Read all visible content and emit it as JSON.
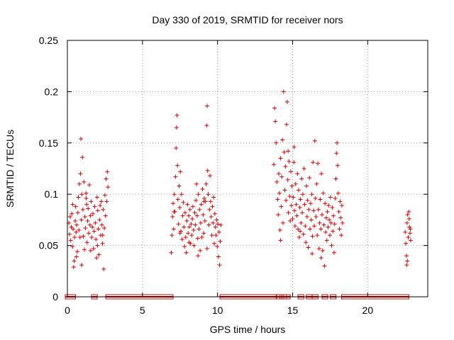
{
  "colors": {
    "series": "#dd0000",
    "grid": "#a0a0a0",
    "axis": "#000000"
  },
  "chart_data": {
    "type": "scatter",
    "title": "Day 330 of 2019, SRMTID for receiver nors",
    "xlabel": "GPS time / hours",
    "ylabel": "SRMTID / TECUs",
    "xlim": [
      0,
      24
    ],
    "ylim": [
      0,
      0.25
    ],
    "x_ticks": [
      0,
      5,
      10,
      15,
      20
    ],
    "x_tick_labels": [
      "0",
      "5",
      "10",
      "15",
      "20"
    ],
    "y_ticks": [
      0,
      0.05,
      0.1,
      0.15,
      0.2,
      0.25
    ],
    "y_tick_labels": [
      "0",
      "0.05",
      "0.1",
      "0.15",
      "0.2",
      "0.25"
    ],
    "grid": true,
    "marker": "plus",
    "series": [
      {
        "name": "SRMTID",
        "points": [
          [
            0.1,
            0.072
          ],
          [
            0.14,
            0.061
          ],
          [
            0.18,
            0.078
          ],
          [
            0.22,
            0.055
          ],
          [
            0.26,
            0.068
          ],
          [
            0.3,
            0.081
          ],
          [
            0.34,
            0.049
          ],
          [
            0.38,
            0.066
          ],
          [
            0.42,
            0.029
          ],
          [
            0.45,
            0.035
          ],
          [
            0.48,
            0.058
          ],
          [
            0.52,
            0.074
          ],
          [
            0.55,
            0.088
          ],
          [
            0.58,
            0.063
          ],
          [
            0.62,
            0.07
          ],
          [
            0.66,
            0.044
          ],
          [
            0.7,
            0.082
          ],
          [
            0.73,
            0.097
          ],
          [
            0.77,
            0.065
          ],
          [
            0.8,
            0.11
          ],
          [
            0.84,
            0.058
          ],
          [
            0.87,
            0.12
          ],
          [
            0.9,
            0.154
          ],
          [
            0.93,
            0.075
          ],
          [
            0.96,
            0.1
          ],
          [
            1.0,
            0.136
          ],
          [
            1.03,
            0.085
          ],
          [
            1.06,
            0.059
          ],
          [
            1.1,
            0.112
          ],
          [
            1.13,
            0.046
          ],
          [
            1.17,
            0.078
          ],
          [
            1.2,
            0.067
          ],
          [
            1.24,
            0.101
          ],
          [
            1.28,
            0.09
          ],
          [
            1.31,
            0.053
          ],
          [
            1.35,
            0.074
          ],
          [
            1.38,
            0.086
          ],
          [
            1.42,
            0.062
          ],
          [
            1.46,
            0.109
          ],
          [
            1.5,
            0.07
          ],
          [
            1.54,
            0.079
          ],
          [
            1.58,
            0.093
          ],
          [
            1.62,
            0.058
          ],
          [
            1.66,
            0.068
          ],
          [
            1.7,
            0.081
          ],
          [
            1.74,
            0.047
          ],
          [
            1.78,
            0.064
          ],
          [
            1.82,
            0.088
          ],
          [
            1.86,
            0.072
          ],
          [
            1.9,
            0.056
          ],
          [
            1.94,
            0.038
          ],
          [
            1.98,
            0.097
          ],
          [
            2.02,
            0.084
          ],
          [
            2.06,
            0.066
          ],
          [
            2.1,
            0.041
          ],
          [
            2.14,
            0.075
          ],
          [
            2.18,
            0.089
          ],
          [
            2.22,
            0.06
          ],
          [
            2.26,
            0.093
          ],
          [
            2.3,
            0.07
          ],
          [
            2.34,
            0.052
          ],
          [
            2.38,
            0.085
          ],
          [
            2.42,
            0.027
          ],
          [
            2.46,
            0.067
          ],
          [
            2.5,
            0.099
          ],
          [
            2.54,
            0.079
          ],
          [
            2.58,
            0.115
          ],
          [
            2.62,
            0.093
          ],
          [
            2.66,
            0.122
          ],
          [
            2.7,
            0.107
          ],
          [
            0.6,
            0.039
          ],
          [
            0.95,
            0.031
          ],
          [
            1.55,
            0.045
          ],
          [
            2.0,
            0.05
          ],
          [
            2.35,
            0.06
          ],
          [
            1.25,
            0.096
          ],
          [
            0.35,
            0.09
          ],
          [
            6.92,
            0.043
          ],
          [
            6.96,
            0.06
          ],
          [
            7.0,
            0.078
          ],
          [
            7.04,
            0.091
          ],
          [
            7.08,
            0.066
          ],
          [
            7.12,
            0.1
          ],
          [
            7.16,
            0.083
          ],
          [
            7.2,
            0.117
          ],
          [
            7.24,
            0.145
          ],
          [
            7.27,
            0.165
          ],
          [
            7.3,
            0.177
          ],
          [
            7.33,
            0.128
          ],
          [
            7.36,
            0.095
          ],
          [
            7.4,
            0.071
          ],
          [
            7.44,
            0.108
          ],
          [
            7.48,
            0.087
          ],
          [
            7.52,
            0.122
          ],
          [
            7.56,
            0.064
          ],
          [
            7.6,
            0.1
          ],
          [
            7.64,
            0.056
          ],
          [
            7.68,
            0.079
          ],
          [
            7.72,
            0.092
          ],
          [
            7.76,
            0.068
          ],
          [
            7.8,
            0.049
          ],
          [
            7.84,
            0.082
          ],
          [
            7.88,
            0.058
          ],
          [
            7.92,
            0.043
          ],
          [
            7.96,
            0.074
          ],
          [
            8.0,
            0.09
          ],
          [
            8.04,
            0.062
          ],
          [
            8.08,
            0.079
          ],
          [
            8.12,
            0.068
          ],
          [
            8.16,
            0.085
          ],
          [
            8.2,
            0.052
          ],
          [
            8.24,
            0.071
          ],
          [
            8.28,
            0.06
          ],
          [
            8.32,
            0.076
          ],
          [
            8.36,
            0.088
          ],
          [
            8.4,
            0.065
          ],
          [
            8.44,
            0.05
          ],
          [
            8.48,
            0.082
          ],
          [
            8.52,
            0.07
          ],
          [
            8.56,
            0.094
          ],
          [
            8.6,
            0.11
          ],
          [
            8.64,
            0.079
          ],
          [
            8.68,
            0.057
          ],
          [
            8.72,
            0.1
          ],
          [
            8.76,
            0.066
          ],
          [
            8.8,
            0.085
          ],
          [
            8.84,
            0.045
          ],
          [
            8.88,
            0.072
          ],
          [
            8.92,
            0.09
          ],
          [
            8.96,
            0.058
          ],
          [
            9.0,
            0.105
          ],
          [
            9.04,
            0.08
          ],
          [
            9.08,
            0.062
          ],
          [
            9.12,
            0.096
          ],
          [
            9.16,
            0.074
          ],
          [
            9.2,
            0.093
          ],
          [
            9.24,
            0.11
          ],
          [
            9.28,
            0.167
          ],
          [
            9.31,
            0.186
          ],
          [
            9.34,
            0.123
          ],
          [
            9.38,
            0.1
          ],
          [
            9.42,
            0.07
          ],
          [
            9.46,
            0.085
          ],
          [
            9.5,
            0.118
          ],
          [
            9.54,
            0.093
          ],
          [
            9.58,
            0.078
          ],
          [
            9.62,
            0.06
          ],
          [
            9.66,
            0.088
          ],
          [
            9.7,
            0.072
          ],
          [
            9.74,
            0.097
          ],
          [
            9.78,
            0.052
          ],
          [
            9.82,
            0.081
          ],
          [
            9.86,
            0.068
          ],
          [
            9.9,
            0.06
          ],
          [
            9.94,
            0.075
          ],
          [
            9.98,
            0.049
          ],
          [
            10.02,
            0.071
          ],
          [
            10.06,
            0.039
          ],
          [
            10.1,
            0.063
          ],
          [
            10.14,
            0.031
          ],
          [
            10.18,
            0.054
          ],
          [
            10.22,
            0.07
          ],
          [
            7.1,
            0.083
          ],
          [
            7.5,
            0.062
          ],
          [
            8.1,
            0.053
          ],
          [
            8.7,
            0.04
          ],
          [
            9.1,
            0.093
          ],
          [
            9.3,
            0.047
          ],
          [
            13.75,
            0.129
          ],
          [
            13.8,
            0.184
          ],
          [
            13.85,
            0.171
          ],
          [
            13.9,
            0.15
          ],
          [
            13.95,
            0.112
          ],
          [
            14.0,
            0.095
          ],
          [
            14.04,
            0.08
          ],
          [
            14.08,
            0.12
          ],
          [
            14.12,
            0.101
          ],
          [
            14.16,
            0.065
          ],
          [
            14.2,
            0.135
          ],
          [
            14.24,
            0.088
          ],
          [
            14.28,
            0.117
          ],
          [
            14.32,
            0.153
          ],
          [
            14.36,
            0.072
          ],
          [
            14.4,
            0.2
          ],
          [
            14.44,
            0.141
          ],
          [
            14.48,
            0.104
          ],
          [
            14.52,
            0.127
          ],
          [
            14.56,
            0.094
          ],
          [
            14.6,
            0.168
          ],
          [
            14.64,
            0.19
          ],
          [
            14.68,
            0.114
          ],
          [
            14.72,
            0.082
          ],
          [
            14.76,
            0.132
          ],
          [
            14.8,
            0.098
          ],
          [
            14.84,
            0.074
          ],
          [
            14.88,
            0.122
          ],
          [
            14.92,
            0.089
          ],
          [
            14.96,
            0.108
          ],
          [
            15.0,
            0.076
          ],
          [
            15.04,
            0.097
          ],
          [
            15.08,
            0.131
          ],
          [
            15.12,
            0.084
          ],
          [
            15.16,
            0.069
          ],
          [
            15.2,
            0.11
          ],
          [
            15.24,
            0.09
          ],
          [
            15.28,
            0.079
          ],
          [
            15.32,
            0.12
          ],
          [
            15.36,
            0.066
          ],
          [
            15.4,
            0.104
          ],
          [
            15.44,
            0.058
          ],
          [
            15.48,
            0.087
          ],
          [
            15.52,
            0.095
          ],
          [
            15.56,
            0.072
          ],
          [
            15.6,
            0.115
          ],
          [
            15.64,
            0.082
          ],
          [
            15.68,
            0.1
          ],
          [
            15.72,
            0.061
          ],
          [
            15.76,
            0.125
          ],
          [
            15.8,
            0.09
          ],
          [
            15.84,
            0.069
          ],
          [
            15.88,
            0.053
          ],
          [
            15.92,
            0.108
          ],
          [
            15.96,
            0.078
          ],
          [
            16.0,
            0.094
          ],
          [
            16.04,
            0.048
          ],
          [
            16.08,
            0.085
          ],
          [
            16.12,
            0.116
          ],
          [
            16.16,
            0.066
          ],
          [
            16.2,
            0.091
          ],
          [
            16.24,
            0.075
          ],
          [
            16.28,
            0.1
          ],
          [
            16.32,
            0.059
          ],
          [
            16.36,
            0.131
          ],
          [
            16.4,
            0.084
          ],
          [
            16.44,
            0.069
          ],
          [
            16.48,
            0.152
          ],
          [
            16.52,
            0.096
          ],
          [
            16.56,
            0.078
          ],
          [
            16.6,
            0.11
          ],
          [
            16.64,
            0.06
          ],
          [
            16.68,
            0.13
          ],
          [
            16.72,
            0.085
          ],
          [
            16.76,
            0.047
          ],
          [
            16.8,
            0.072
          ],
          [
            16.84,
            0.095
          ],
          [
            16.88,
            0.066
          ],
          [
            16.92,
            0.12
          ],
          [
            16.96,
            0.08
          ],
          [
            17.0,
            0.045
          ],
          [
            17.04,
            0.101
          ],
          [
            17.08,
            0.07
          ],
          [
            17.12,
            0.03
          ],
          [
            17.16,
            0.091
          ],
          [
            17.2,
            0.063
          ],
          [
            17.24,
            0.077
          ],
          [
            17.28,
            0.055
          ],
          [
            17.32,
            0.083
          ],
          [
            17.36,
            0.068
          ],
          [
            17.4,
            0.089
          ],
          [
            17.44,
            0.075
          ],
          [
            17.48,
            0.06
          ],
          [
            17.52,
            0.097
          ],
          [
            17.56,
            0.072
          ],
          [
            17.6,
            0.05
          ],
          [
            17.64,
            0.087
          ],
          [
            17.68,
            0.064
          ],
          [
            17.72,
            0.079
          ],
          [
            17.76,
            0.043
          ],
          [
            17.8,
            0.071
          ],
          [
            17.84,
            0.096
          ],
          [
            17.88,
            0.115
          ],
          [
            17.92,
            0.14
          ],
          [
            17.96,
            0.15
          ],
          [
            18.0,
            0.128
          ],
          [
            18.04,
            0.101
          ],
          [
            18.08,
            0.083
          ],
          [
            18.12,
            0.066
          ],
          [
            18.16,
            0.093
          ],
          [
            18.2,
            0.077
          ],
          [
            18.24,
            0.06
          ],
          [
            18.28,
            0.089
          ],
          [
            18.32,
            0.072
          ],
          [
            14.2,
            0.055
          ],
          [
            14.7,
            0.142
          ],
          [
            15.5,
            0.064
          ],
          [
            16.3,
            0.042
          ],
          [
            15.1,
            0.146
          ],
          [
            16.9,
            0.038
          ],
          [
            22.5,
            0.063
          ],
          [
            22.54,
            0.052
          ],
          [
            22.58,
            0.04
          ],
          [
            22.62,
            0.072
          ],
          [
            22.66,
            0.08
          ],
          [
            22.7,
            0.058
          ],
          [
            22.74,
            0.083
          ],
          [
            22.78,
            0.068
          ],
          [
            22.82,
            0.062
          ],
          [
            22.86,
            0.055
          ],
          [
            22.6,
            0.031
          ],
          [
            22.64,
            0.035
          ],
          [
            22.76,
            0.076
          ],
          [
            22.84,
            0.066
          ]
        ]
      }
    ],
    "zero_value_segments": [
      [
        0.0,
        0.4
      ],
      [
        1.75,
        1.85
      ],
      [
        2.7,
        6.9
      ],
      [
        10.3,
        13.8
      ],
      [
        14.05,
        14.15
      ],
      [
        14.3,
        14.45
      ],
      [
        14.55,
        14.7
      ],
      [
        15.5,
        15.6
      ],
      [
        16.05,
        16.15
      ],
      [
        16.45,
        16.55
      ],
      [
        17.1,
        17.2
      ],
      [
        17.65,
        17.75
      ],
      [
        18.4,
        22.6
      ]
    ]
  }
}
